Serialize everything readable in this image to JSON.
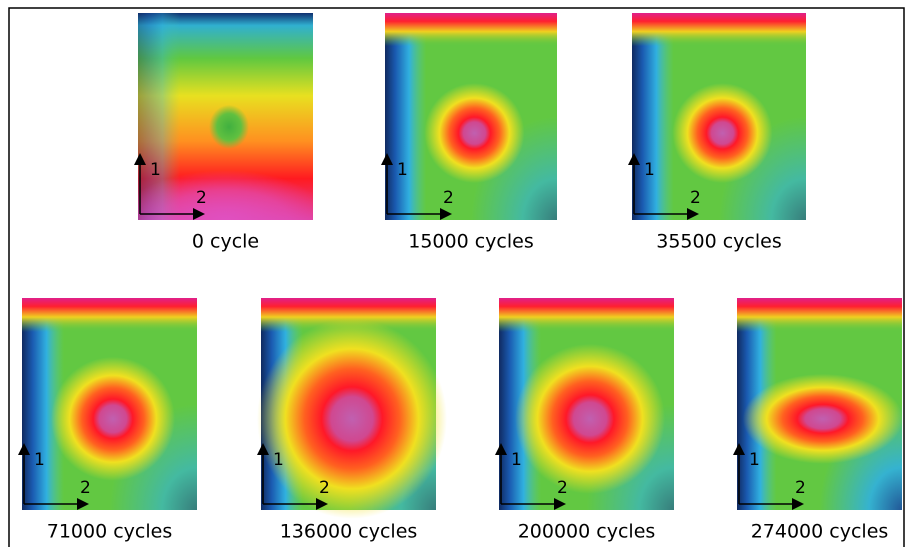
{
  "panels": [
    {
      "caption": "0 cycle",
      "axis_1": "1",
      "axis_2": "2"
    },
    {
      "caption": "15000 cycles",
      "axis_1": "1",
      "axis_2": "2"
    },
    {
      "caption": "35500 cycles",
      "axis_1": "1",
      "axis_2": "2"
    },
    {
      "caption": "71000 cycles",
      "axis_1": "1",
      "axis_2": "2"
    },
    {
      "caption": "136000 cycles",
      "axis_1": "1",
      "axis_2": "2"
    },
    {
      "caption": "200000 cycles",
      "axis_1": "1",
      "axis_2": "2"
    },
    {
      "caption": "274000 cycles",
      "axis_1": "1",
      "axis_2": "2"
    }
  ]
}
